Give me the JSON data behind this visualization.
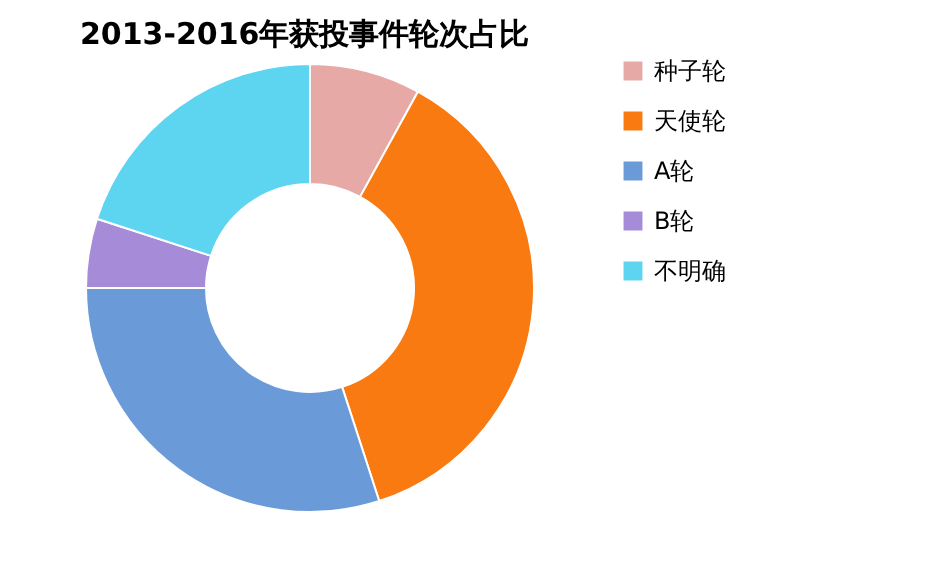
{
  "chart_data": {
    "type": "donut",
    "title": "2013-2016年获投事件轮次占比",
    "categories": [
      "种子轮",
      "天使轮",
      "A轮",
      "B轮",
      "不明确"
    ],
    "values": [
      8,
      37,
      30,
      5,
      20
    ],
    "colors": [
      "#e6a9a6",
      "#f97a10",
      "#6a9bd8",
      "#a58bd8",
      "#5dd4f0"
    ],
    "legend": "right"
  }
}
